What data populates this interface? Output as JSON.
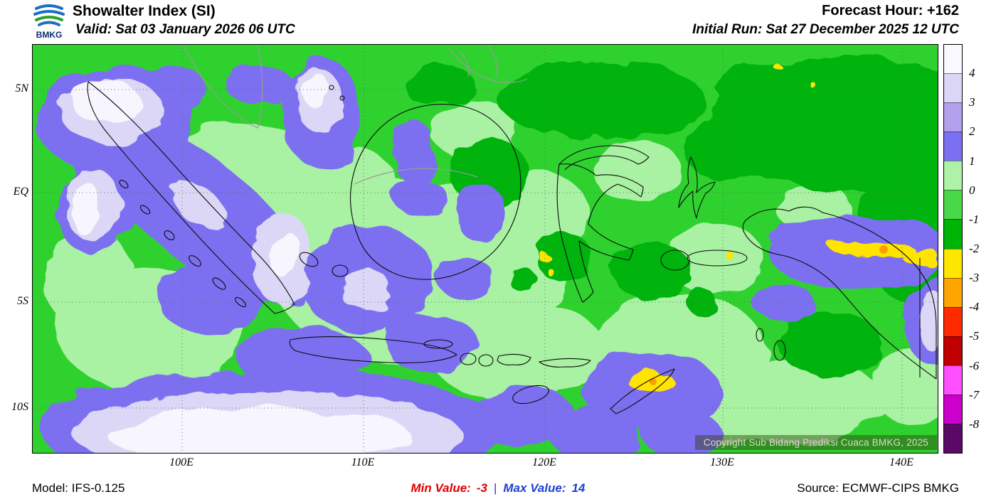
{
  "header": {
    "logo_text": "BMKG",
    "title": "Showalter Index (SI)",
    "valid_line": "Valid: Sat 03 January 2026 06 UTC",
    "forecast_hour": "Forecast Hour: +162",
    "initial_run": "Initial Run: Sat 27 December 2025 12 UTC"
  },
  "axes": {
    "y_ticks": [
      "5N",
      "EQ",
      "5S",
      "10S"
    ],
    "x_ticks": [
      "100E",
      "110E",
      "120E",
      "130E",
      "140E"
    ]
  },
  "legend": {
    "labels": [
      "4",
      "3",
      "2",
      "1",
      "0",
      "-1",
      "-2",
      "-3",
      "-4",
      "-5",
      "-6",
      "-7",
      "-8"
    ],
    "colors": [
      "#f9f8fe",
      "#dcd6f6",
      "#b3a0ec",
      "#7b70f0",
      "#aef2a8",
      "#49d849",
      "#00b407",
      "#ffe600",
      "#ffa500",
      "#ff2a00",
      "#c00000",
      "#ff50ff",
      "#cc00cc",
      "#5a0a66"
    ]
  },
  "map": {
    "copyright": "Copyright Sub Bidang Prediksi Cuaca BMKG, 2025"
  },
  "footer": {
    "model": "Model: IFS-0.125",
    "min_label": "Min Value:",
    "min_value": "-3",
    "separator": "|",
    "max_label": "Max Value:",
    "max_value": "14",
    "source": "Source: ECMWF-CIPS BMKG"
  }
}
